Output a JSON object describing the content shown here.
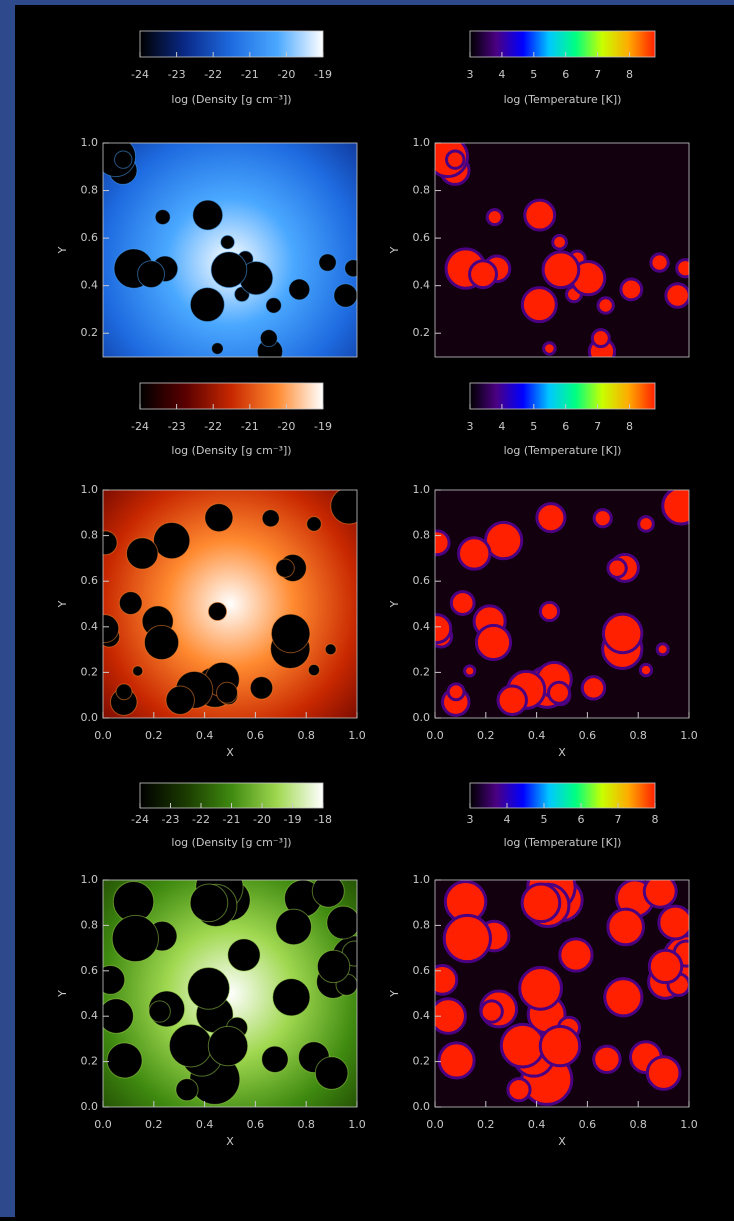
{
  "chart_data": [
    {
      "type": "image",
      "colorbar": {
        "label": "log (Density [g cm⁻³])",
        "lim": [
          -24,
          -19
        ],
        "ticks": [
          -24,
          -23,
          -22,
          -21,
          -20,
          -19
        ],
        "colors": [
          "#000000",
          "#0a2a8a",
          "#1e6be0",
          "#4aa8ff",
          "#ffffff"
        ]
      },
      "ylabel": "Y",
      "ylim": [
        0.1,
        1
      ],
      "yticks": [
        0.2,
        0.4,
        0.6,
        0.8,
        {
          "value": 1,
          "label": "1.0"
        }
      ]
    },
    {
      "type": "image",
      "colorbar": {
        "label": "log (Temperature [K])",
        "lim": [
          3,
          8.8
        ],
        "ticks": [
          3,
          4,
          5,
          6,
          7,
          8
        ],
        "colors": [
          "#000000",
          "#4b0082",
          "#0000ff",
          "#00c8ff",
          "#00ff80",
          "#c8ff00",
          "#ffaa00",
          "#ff2000"
        ]
      },
      "ylabel": "Y",
      "ylim": [
        0.1,
        1
      ],
      "yticks": [
        0.2,
        0.4,
        0.6,
        0.8,
        {
          "value": 1,
          "label": "1.0"
        }
      ]
    },
    {
      "type": "image",
      "colorbar": {
        "label": "log (Density [g cm⁻³])",
        "lim": [
          -24,
          -19
        ],
        "ticks": [
          -24,
          -23,
          -22,
          -21,
          -20,
          -19
        ],
        "colors": [
          "#000000",
          "#5a0000",
          "#c82800",
          "#ff8a30",
          "#ffffff"
        ]
      },
      "xlabel": "X",
      "ylabel": "Y",
      "xlim": [
        0,
        1
      ],
      "ylim": [
        0,
        1
      ],
      "xticks": [
        {
          "value": 0,
          "label": "0.0"
        },
        0.2,
        0.4,
        0.6,
        0.8,
        {
          "value": 1,
          "label": "1.0"
        }
      ],
      "yticks": [
        {
          "value": 0,
          "label": "0.0"
        },
        0.2,
        0.4,
        0.6,
        0.8,
        {
          "value": 1,
          "label": "1.0"
        }
      ]
    },
    {
      "type": "image",
      "colorbar": {
        "label": "log (Temperature [K])",
        "lim": [
          3,
          8.8
        ],
        "ticks": [
          3,
          4,
          5,
          6,
          7,
          8
        ],
        "colors": [
          "#000000",
          "#4b0082",
          "#0000ff",
          "#00c8ff",
          "#00ff80",
          "#c8ff00",
          "#ffaa00",
          "#ff2000"
        ]
      },
      "xlabel": "X",
      "ylabel": "Y",
      "xlim": [
        0,
        1
      ],
      "ylim": [
        0,
        1
      ],
      "xticks": [
        {
          "value": 0,
          "label": "0.0"
        },
        0.2,
        0.4,
        0.6,
        0.8,
        {
          "value": 1,
          "label": "1.0"
        }
      ],
      "yticks": [
        {
          "value": 0,
          "label": "0.0"
        },
        0.2,
        0.4,
        0.6,
        0.8,
        {
          "value": 1,
          "label": "1.0"
        }
      ]
    },
    {
      "type": "image",
      "colorbar": {
        "label": "log (Density [g cm⁻³])",
        "lim": [
          -24,
          -18
        ],
        "ticks": [
          -24,
          -23,
          -22,
          -21,
          -20,
          -19,
          -18
        ],
        "colors": [
          "#000000",
          "#1a3a00",
          "#3f8a10",
          "#a0d850",
          "#ffffff"
        ]
      },
      "xlabel": "X",
      "ylabel": "Y",
      "xlim": [
        0,
        1
      ],
      "ylim": [
        0,
        1
      ],
      "xticks": [
        {
          "value": 0,
          "label": "0.0"
        },
        0.2,
        0.4,
        0.6,
        0.8,
        {
          "value": 1,
          "label": "1.0"
        }
      ],
      "yticks": [
        {
          "value": 0,
          "label": "0.0"
        },
        0.2,
        0.4,
        0.6,
        0.8,
        {
          "value": 1,
          "label": "1.0"
        }
      ]
    },
    {
      "type": "image",
      "colorbar": {
        "label": "log (Temperature [K])",
        "lim": [
          3,
          8
        ],
        "ticks": [
          3,
          4,
          5,
          6,
          7,
          8
        ],
        "colors": [
          "#000000",
          "#4b0082",
          "#0000ff",
          "#00c8ff",
          "#00ff80",
          "#c8ff00",
          "#ffaa00",
          "#ff2000"
        ]
      },
      "xlabel": "X",
      "ylabel": "Y",
      "xlim": [
        0,
        1
      ],
      "ylim": [
        0,
        1
      ],
      "xticks": [
        {
          "value": 0,
          "label": "0.0"
        },
        0.2,
        0.4,
        0.6,
        0.8,
        {
          "value": 1,
          "label": "1.0"
        }
      ],
      "yticks": [
        {
          "value": 0,
          "label": "0.0"
        },
        0.2,
        0.4,
        0.6,
        0.8,
        {
          "value": 1,
          "label": "1.0"
        }
      ]
    }
  ]
}
